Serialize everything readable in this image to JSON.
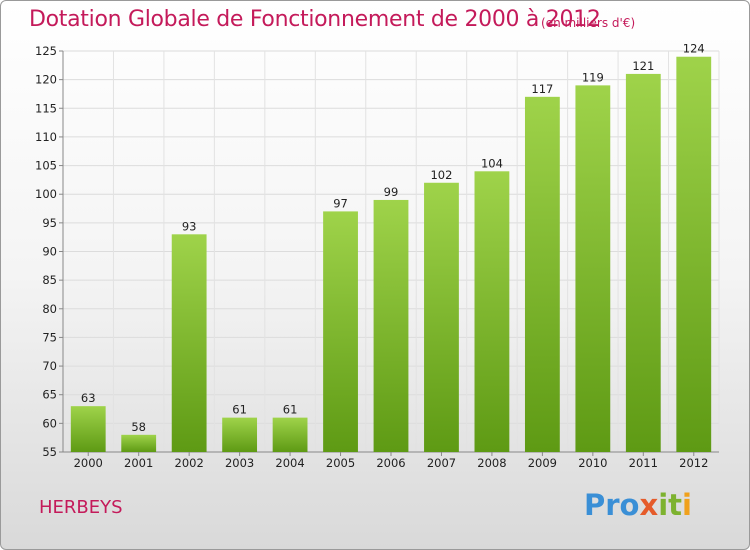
{
  "title": "Dotation Globale de Fonctionnement de 2000 à 2012",
  "subtitle": "(en milliers d'€)",
  "commune": "HERBEYS",
  "logo": {
    "text": "Proxiti",
    "parts": [
      "Pro",
      "x",
      "it",
      "i"
    ],
    "colors": [
      "#3a8fd6",
      "#e55b2a",
      "#7db22f",
      "#f0a11c"
    ]
  },
  "chart_data": {
    "type": "bar",
    "title": "Dotation Globale de Fonctionnement de 2000 à 2012",
    "subtitle": "(en milliers d'€)",
    "xlabel": "",
    "ylabel": "",
    "categories": [
      "2000",
      "2001",
      "2002",
      "2003",
      "2004",
      "2005",
      "2006",
      "2007",
      "2008",
      "2009",
      "2010",
      "2011",
      "2012"
    ],
    "values": [
      63,
      58,
      93,
      61,
      61,
      97,
      99,
      102,
      104,
      117,
      119,
      121,
      124
    ],
    "ylim": [
      55,
      125
    ],
    "yticks": [
      55,
      60,
      65,
      70,
      75,
      80,
      85,
      90,
      95,
      100,
      105,
      110,
      115,
      120,
      125
    ],
    "grid": true,
    "legend": "none",
    "bar_color": "#7db52e"
  }
}
